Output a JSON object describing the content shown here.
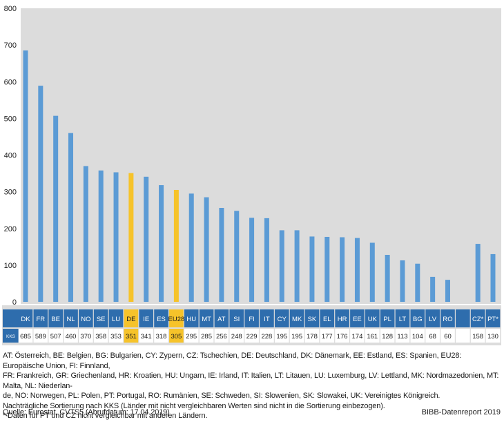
{
  "chart_data": {
    "type": "bar",
    "categories": [
      "DK",
      "FR",
      "BE",
      "NL",
      "NO",
      "SE",
      "LU",
      "DE",
      "IE",
      "ES",
      "EU28",
      "HU",
      "MT",
      "AT",
      "SI",
      "FI",
      "IT",
      "CY",
      "MK",
      "SK",
      "EL",
      "HR",
      "EE",
      "UK",
      "PL",
      "LT",
      "BG",
      "LV",
      "RO",
      "",
      "CZ*",
      "PT*"
    ],
    "values": [
      685,
      589,
      507,
      460,
      370,
      358,
      353,
      351,
      341,
      318,
      305,
      295,
      285,
      256,
      248,
      229,
      228,
      195,
      195,
      178,
      177,
      176,
      174,
      161,
      128,
      113,
      104,
      68,
      60,
      null,
      158,
      130
    ],
    "value_labels": [
      "685",
      "589",
      "507",
      "460",
      "370",
      "358",
      "353",
      "351",
      "341",
      "318",
      "305",
      "295",
      "285",
      "256",
      "248",
      "229",
      "228",
      "195",
      "195",
      "178",
      "177",
      "176",
      "174",
      "161",
      "128",
      "113",
      "104",
      "68",
      "60",
      "",
      "158",
      "130"
    ],
    "highlighted": [
      "DE",
      "EU28"
    ],
    "row_label": "KKS",
    "title": "",
    "xlabel": "",
    "ylabel": "",
    "ylim": [
      0,
      800
    ],
    "yticks": [
      "0",
      "100",
      "200",
      "300",
      "400",
      "500",
      "600",
      "700",
      "800"
    ],
    "grid": false,
    "colors": {
      "bar": "#5b9bd5",
      "highlight": "#f6c32a",
      "plot_background": "#dcdcdc",
      "header_row": "#2e6dad"
    }
  },
  "footer": {
    "legend_lines": [
      "AT: Österreich, BE: Belgien, BG: Bulgarien, CY: Zypern, CZ: Tschechien, DE: Deutschland, DK: Dänemark, EE: Estland, ES: Spanien, EU28: Europäische Union, FI: Finnland,",
      "FR: Frankreich, GR: Griechenland, HR: Kroatien, HU: Ungarn, IE: Irland, IT: Italien, LT: Litauen, LU: Luxemburg, LV: Lettland, MK: Nordmazedonien, MT: Malta, NL: Niederlan-",
      "de, NO: Norwegen, PL: Polen, PT: Portugal, RO: Rumänien, SE: Schweden, SI: Slowenien, SK: Slowakei, UK: Vereinigtes Königreich."
    ],
    "note1": "Nachträgliche Sortierung nach KKS (Länder mit nicht vergleichbaren Werten sind nicht in die Sortierung einbezogen).",
    "note2": "* Daten für PT und CZ nicht vergleichbar mit anderen Ländern.",
    "source": "Quelle: Eurostat, CVTS5 (Abrufdatum: 17.04.2019)",
    "credit": "BIBB-Datenreport 2019"
  }
}
